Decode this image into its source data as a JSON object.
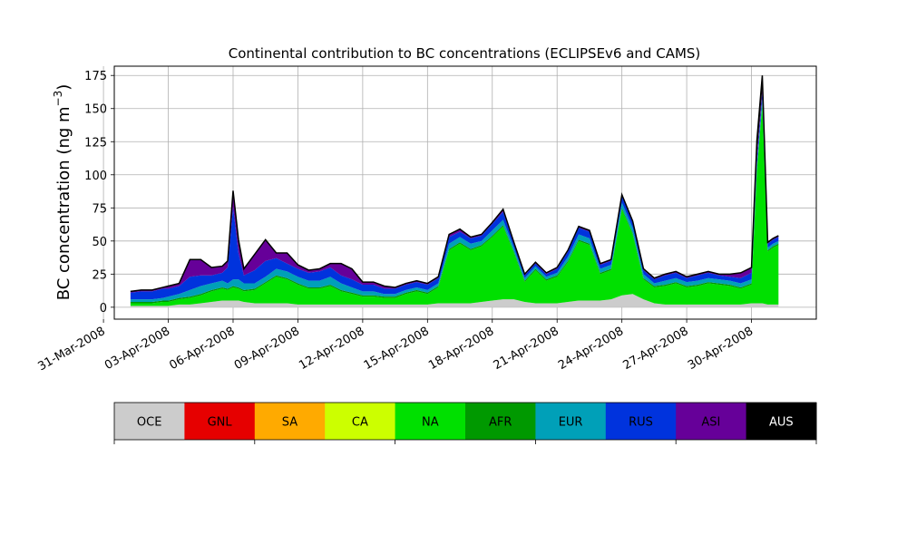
{
  "chart_data": {
    "type": "area",
    "stacked": true,
    "title": "Continental contribution to BC concentrations (ECLIPSEv6 and CAMS)",
    "ylabel_main": "BC concentration (ng m",
    "ylabel_exp": "−3",
    "ylabel_close": ")",
    "xlabel": "",
    "xlim": [
      "2008-03-31T12:00",
      "2008-05-03T00:00"
    ],
    "ylim": [
      -9,
      182
    ],
    "yticks": [
      0,
      25,
      50,
      75,
      100,
      125,
      150,
      175
    ],
    "xticks": [
      {
        "date": "2008-03-31",
        "label": "31-Mar-2008"
      },
      {
        "date": "2008-04-03",
        "label": "03-Apr-2008"
      },
      {
        "date": "2008-04-06",
        "label": "06-Apr-2008"
      },
      {
        "date": "2008-04-09",
        "label": "09-Apr-2008"
      },
      {
        "date": "2008-04-12",
        "label": "12-Apr-2008"
      },
      {
        "date": "2008-04-15",
        "label": "15-Apr-2008"
      },
      {
        "date": "2008-04-18",
        "label": "18-Apr-2008"
      },
      {
        "date": "2008-04-21",
        "label": "21-Apr-2008"
      },
      {
        "date": "2008-04-24",
        "label": "24-Apr-2008"
      },
      {
        "date": "2008-04-27",
        "label": "27-Apr-2008"
      },
      {
        "date": "2008-04-30",
        "label": "30-Apr-2008"
      }
    ],
    "grid": true,
    "legend_placement": "colorbar below chart",
    "legend": [
      {
        "name": "OCE",
        "color": "#cccccc"
      },
      {
        "name": "GNL",
        "color": "#e60000"
      },
      {
        "name": "SA",
        "color": "#ffaa00"
      },
      {
        "name": "CA",
        "color": "#ccff00"
      },
      {
        "name": "NA",
        "color": "#00e000"
      },
      {
        "name": "AFR",
        "color": "#009900"
      },
      {
        "name": "EUR",
        "color": "#00a0b8"
      },
      {
        "name": "RUS",
        "color": "#0033dd"
      },
      {
        "name": "ASI",
        "color": "#660099"
      },
      {
        "name": "AUS",
        "color": "#000000"
      }
    ],
    "x": [
      "2008-04-01T06:00",
      "2008-04-01T18:00",
      "2008-04-02T06:00",
      "2008-04-02T18:00",
      "2008-04-03T00:00",
      "2008-04-03T12:00",
      "2008-04-04T00:00",
      "2008-04-04T12:00",
      "2008-04-05T00:00",
      "2008-04-05T12:00",
      "2008-04-05T18:00",
      "2008-04-06T00:00",
      "2008-04-06T06:00",
      "2008-04-06T12:00",
      "2008-04-07T00:00",
      "2008-04-07T12:00",
      "2008-04-08T00:00",
      "2008-04-08T12:00",
      "2008-04-09T00:00",
      "2008-04-09T12:00",
      "2008-04-10T00:00",
      "2008-04-10T12:00",
      "2008-04-11T00:00",
      "2008-04-11T12:00",
      "2008-04-12T00:00",
      "2008-04-12T12:00",
      "2008-04-13T00:00",
      "2008-04-13T12:00",
      "2008-04-14T00:00",
      "2008-04-14T12:00",
      "2008-04-15T00:00",
      "2008-04-15T12:00",
      "2008-04-16T00:00",
      "2008-04-16T12:00",
      "2008-04-17T00:00",
      "2008-04-17T12:00",
      "2008-04-18T00:00",
      "2008-04-18T12:00",
      "2008-04-19T00:00",
      "2008-04-19T12:00",
      "2008-04-20T00:00",
      "2008-04-20T12:00",
      "2008-04-21T00:00",
      "2008-04-21T12:00",
      "2008-04-22T00:00",
      "2008-04-22T12:00",
      "2008-04-23T00:00",
      "2008-04-23T12:00",
      "2008-04-24T00:00",
      "2008-04-24T12:00",
      "2008-04-25T00:00",
      "2008-04-25T12:00",
      "2008-04-26T00:00",
      "2008-04-26T12:00",
      "2008-04-27T00:00",
      "2008-04-27T12:00",
      "2008-04-28T00:00",
      "2008-04-28T12:00",
      "2008-04-29T00:00",
      "2008-04-29T12:00",
      "2008-04-30T00:00",
      "2008-04-30T06:00",
      "2008-04-30T12:00",
      "2008-04-30T18:00",
      "2008-05-01T00:00",
      "2008-05-01T06:00"
    ],
    "series": [
      {
        "name": "OCE",
        "values": [
          1,
          1,
          1,
          1,
          1,
          2,
          2,
          3,
          4,
          5,
          5,
          5,
          5,
          4,
          3,
          3,
          3,
          3,
          2,
          2,
          2,
          2,
          2,
          2,
          2,
          2,
          2,
          2,
          2,
          2,
          2,
          3,
          3,
          3,
          3,
          4,
          5,
          6,
          6,
          4,
          3,
          3,
          3,
          4,
          5,
          5,
          5,
          6,
          9,
          10,
          6,
          3,
          2,
          2,
          2,
          2,
          2,
          2,
          2,
          2,
          3,
          3,
          3,
          2,
          2,
          2
        ]
      },
      {
        "name": "GNL",
        "values": [
          0,
          0,
          0,
          0,
          0,
          0,
          0,
          0,
          0,
          0,
          0,
          0,
          0,
          0,
          0,
          0,
          0,
          0,
          0,
          0,
          0,
          0,
          0,
          0,
          0,
          0,
          0,
          0,
          0,
          0,
          0,
          0,
          0,
          0,
          0,
          0,
          0,
          0,
          0,
          0,
          0,
          0,
          0,
          0,
          0,
          0,
          0,
          0,
          0,
          0,
          0,
          0,
          0,
          0,
          0,
          0,
          0,
          0,
          0,
          0,
          0,
          0,
          0,
          0,
          0,
          0
        ]
      },
      {
        "name": "SA",
        "values": [
          0,
          0,
          0,
          0,
          0,
          0,
          0,
          0,
          0,
          0,
          0,
          0,
          0,
          0,
          0,
          0,
          0,
          0,
          0,
          0,
          0,
          0,
          0,
          0,
          0,
          0,
          0,
          0,
          0,
          0,
          0,
          0,
          0,
          0,
          0,
          0,
          0,
          0,
          0,
          0,
          0,
          0,
          0,
          0,
          0,
          0,
          0,
          0,
          0,
          0,
          0,
          0,
          0,
          0,
          0,
          0,
          0,
          0,
          0,
          0,
          0,
          0,
          0,
          0,
          0,
          0
        ]
      },
      {
        "name": "CA",
        "values": [
          0,
          0,
          0,
          0,
          0,
          0,
          0,
          0,
          0,
          0,
          0,
          0,
          0,
          0,
          0,
          0,
          0,
          0,
          0,
          0,
          0,
          0,
          0,
          0,
          0,
          0,
          0,
          0,
          0,
          0,
          0,
          0,
          0,
          0,
          0,
          0,
          0,
          0,
          0,
          0,
          0,
          0,
          0,
          0,
          0,
          0,
          0,
          0,
          0,
          0,
          0,
          0,
          0,
          0,
          0,
          0,
          0,
          0,
          0,
          0,
          0,
          0,
          0,
          0,
          0,
          0
        ]
      },
      {
        "name": "NA",
        "values": [
          2,
          2,
          2,
          3,
          3,
          4,
          5,
          6,
          8,
          9,
          8,
          10,
          9,
          8,
          10,
          15,
          20,
          18,
          15,
          12,
          12,
          14,
          10,
          8,
          6,
          6,
          5,
          5,
          8,
          10,
          8,
          12,
          40,
          45,
          40,
          42,
          48,
          55,
          35,
          15,
          25,
          17,
          20,
          30,
          45,
          42,
          20,
          22,
          65,
          45,
          15,
          12,
          14,
          16,
          13,
          14,
          16,
          15,
          14,
          12,
          14,
          100,
          150,
          40,
          43,
          45
        ]
      },
      {
        "name": "AFR",
        "values": [
          1,
          1,
          1,
          1,
          1,
          1,
          1,
          1,
          1,
          1,
          1,
          1,
          1,
          1,
          1,
          1,
          1,
          1,
          1,
          1,
          1,
          1,
          1,
          1,
          1,
          1,
          1,
          1,
          1,
          1,
          1,
          1,
          1,
          1,
          1,
          1,
          1,
          1,
          1,
          1,
          1,
          1,
          1,
          1,
          1,
          1,
          1,
          1,
          1,
          1,
          1,
          1,
          1,
          1,
          1,
          1,
          1,
          1,
          1,
          1,
          1,
          1,
          1,
          1,
          1,
          1
        ]
      },
      {
        "name": "EUR",
        "values": [
          2,
          2,
          2,
          2,
          3,
          3,
          5,
          6,
          5,
          5,
          4,
          5,
          6,
          5,
          4,
          4,
          5,
          5,
          5,
          5,
          5,
          6,
          5,
          4,
          3,
          3,
          2,
          2,
          2,
          2,
          2,
          2,
          4,
          4,
          4,
          3,
          4,
          4,
          3,
          2,
          2,
          2,
          2,
          3,
          4,
          4,
          3,
          3,
          4,
          4,
          3,
          2,
          3,
          3,
          3,
          3,
          3,
          3,
          3,
          3,
          3,
          3,
          3,
          2,
          2,
          2
        ]
      },
      {
        "name": "RUS",
        "values": [
          5,
          6,
          6,
          7,
          6,
          6,
          10,
          8,
          6,
          6,
          12,
          55,
          20,
          6,
          10,
          12,
          8,
          6,
          6,
          6,
          7,
          7,
          6,
          6,
          5,
          5,
          4,
          4,
          4,
          4,
          4,
          4,
          5,
          4,
          4,
          4,
          5,
          6,
          3,
          2,
          2,
          2,
          3,
          4,
          5,
          5,
          3,
          3,
          5,
          4,
          3,
          3,
          4,
          4,
          3,
          4,
          4,
          3,
          3,
          4,
          5,
          5,
          5,
          3,
          3,
          3
        ]
      },
      {
        "name": "ASI",
        "values": [
          1,
          1,
          1,
          1,
          2,
          2,
          13,
          12,
          6,
          5,
          5,
          12,
          10,
          5,
          12,
          16,
          4,
          8,
          3,
          2,
          2,
          3,
          9,
          8,
          2,
          2,
          2,
          1,
          1,
          1,
          1,
          1,
          2,
          2,
          1,
          1,
          1,
          2,
          1,
          1,
          1,
          1,
          1,
          1,
          1,
          1,
          1,
          1,
          1,
          1,
          1,
          1,
          1,
          1,
          1,
          1,
          1,
          1,
          2,
          4,
          4,
          4,
          3,
          1,
          1,
          1
        ]
      },
      {
        "name": "AUS",
        "values": [
          0,
          0,
          0,
          0,
          0,
          0,
          0,
          0,
          0,
          0,
          0,
          0,
          0,
          0,
          0,
          0,
          0,
          0,
          0,
          0,
          0,
          0,
          0,
          0,
          0,
          0,
          0,
          0,
          0,
          0,
          0,
          0,
          0,
          0,
          0,
          0,
          0,
          0,
          0,
          0,
          0,
          0,
          0,
          0,
          0,
          0,
          0,
          0,
          0,
          0,
          0,
          0,
          0,
          0,
          0,
          0,
          0,
          0,
          0,
          0,
          0,
          10,
          10,
          0,
          0,
          0
        ]
      }
    ]
  }
}
